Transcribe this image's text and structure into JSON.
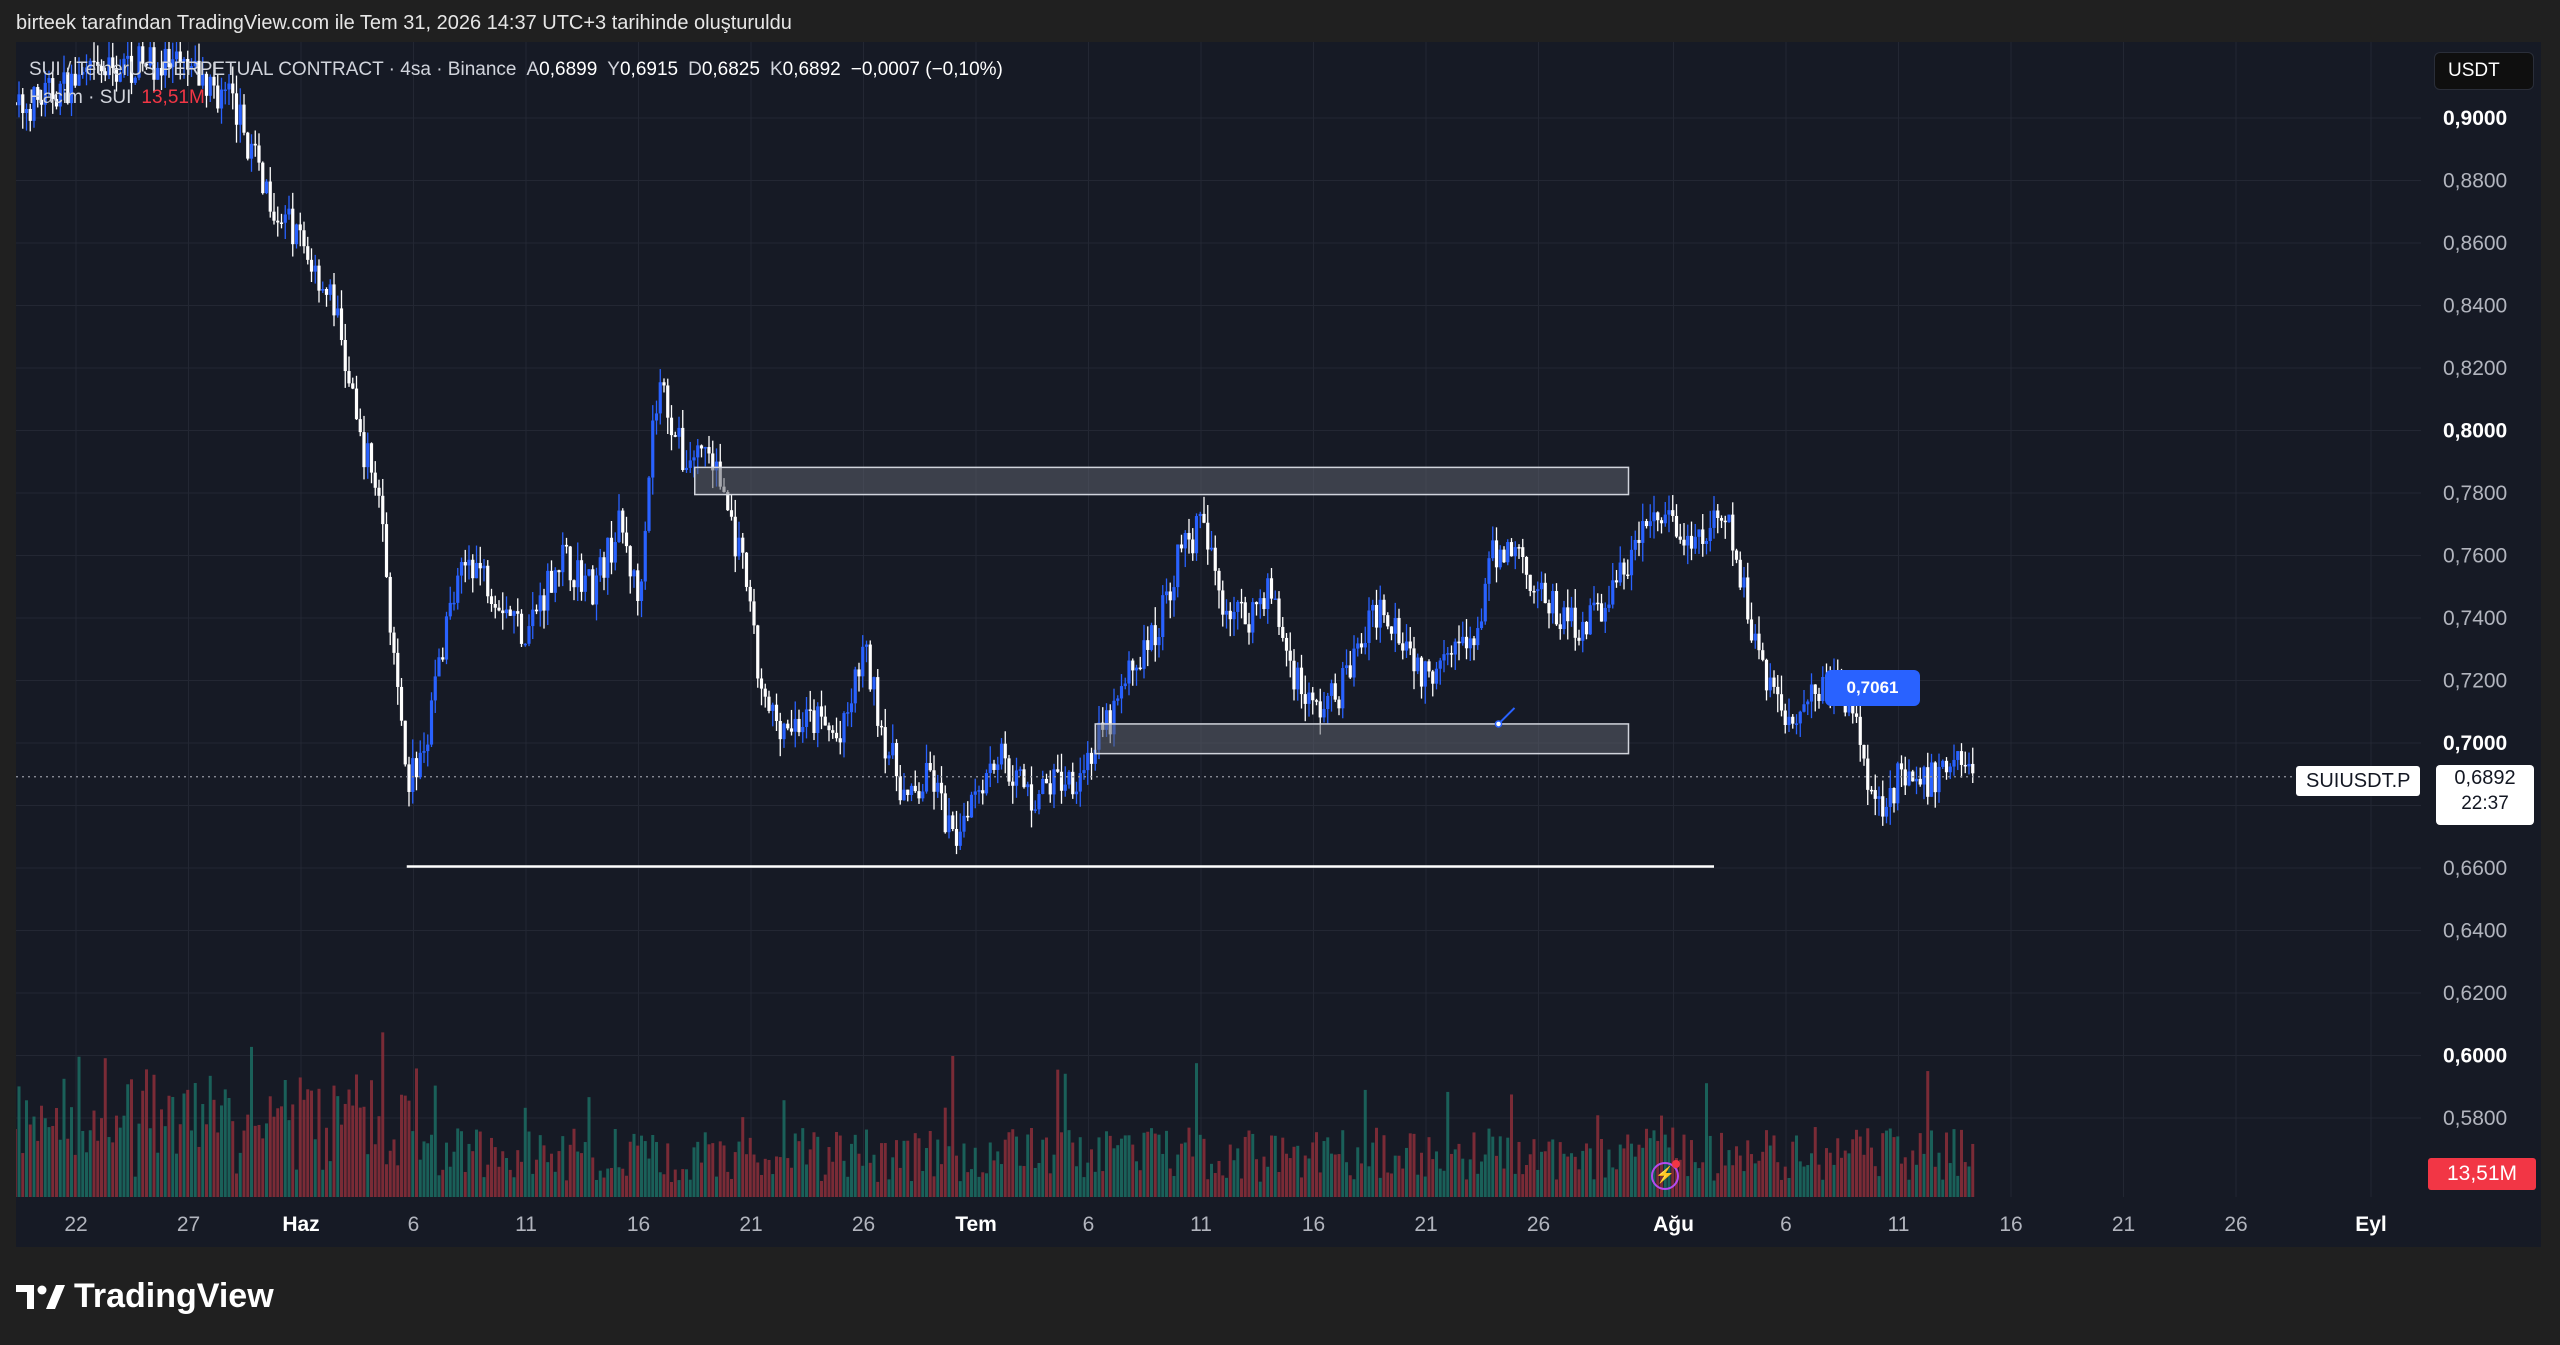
{
  "header": {
    "attribution": "birteek tarafından TradingView.com ile Tem 31, 2026 14:37 UTC+3 tarihinde oluşturuldu"
  },
  "legend": {
    "symbol": "SUI / TetherUS PERPETUAL CONTRACT · 4sa · Binance",
    "open_label": "A",
    "open": "0,6899",
    "high_label": "Y",
    "high": "0,6915",
    "low_label": "D",
    "low": "0,6825",
    "close_label": "K",
    "close": "0,6892",
    "change": "−0,0007 (−0,10%)",
    "volume_label": "Hacim · SUI",
    "volume": "13,51M"
  },
  "currency": "USDT",
  "price_tag": {
    "symbol": "SUIUSDT.P",
    "price": "0,6892",
    "countdown": "22:37"
  },
  "volume_tag": "13,51M",
  "callout": "0,7061",
  "brand": "TradingView",
  "colors": {
    "background": "#161a25",
    "up": "#2962ff",
    "down": "#ffffff",
    "vol_up": "#1b6d63",
    "vol_down": "#8c2f39",
    "zone_fill": "#5d606b",
    "grid": "#232733"
  },
  "chart_data": {
    "type": "candlestick",
    "interval": "4h",
    "y_axis": {
      "range": [
        0.571,
        0.914
      ],
      "ticks": [
        "0,9000",
        "0,8800",
        "0,8600",
        "0,8400",
        "0,8200",
        "0,8000",
        "0,7800",
        "0,7600",
        "0,7400",
        "0,7200",
        "0,7000",
        "0,6800",
        "0,6600",
        "0,6400",
        "0,6200",
        "0,6000",
        "0,5800"
      ],
      "bold_ticks": [
        "0,9000",
        "0,8000",
        "0,7000",
        "0,6000"
      ]
    },
    "x_axis": {
      "ticks": [
        {
          "label": "22",
          "day": -10,
          "bold": false
        },
        {
          "label": "27",
          "day": -5,
          "bold": false
        },
        {
          "label": "Haz",
          "day": 0,
          "bold": true
        },
        {
          "label": "6",
          "day": 5,
          "bold": false
        },
        {
          "label": "11",
          "day": 10,
          "bold": false
        },
        {
          "label": "16",
          "day": 15,
          "bold": false
        },
        {
          "label": "21",
          "day": 20,
          "bold": false
        },
        {
          "label": "26",
          "day": 25,
          "bold": false
        },
        {
          "label": "Tem",
          "day": 30,
          "bold": true
        },
        {
          "label": "6",
          "day": 35,
          "bold": false
        },
        {
          "label": "11",
          "day": 40,
          "bold": false
        },
        {
          "label": "16",
          "day": 45,
          "bold": false
        },
        {
          "label": "21",
          "day": 50,
          "bold": false
        },
        {
          "label": "26",
          "day": 55,
          "bold": false
        },
        {
          "label": "Ağu",
          "day": 61,
          "bold": true
        },
        {
          "label": "6",
          "day": 66,
          "bold": false
        },
        {
          "label": "11",
          "day": 71,
          "bold": false
        },
        {
          "label": "16",
          "day": 76,
          "bold": false
        },
        {
          "label": "21",
          "day": 81,
          "bold": false
        },
        {
          "label": "26",
          "day": 86,
          "bold": false
        },
        {
          "label": "Eyl",
          "day": 92,
          "bold": true
        }
      ]
    },
    "price_path": [
      {
        "day": -13.2,
        "price": 0.9
      },
      {
        "day": -10,
        "price": 0.912
      },
      {
        "day": -7,
        "price": 0.918
      },
      {
        "day": -5,
        "price": 0.915
      },
      {
        "day": -3,
        "price": 0.905
      },
      {
        "day": -2,
        "price": 0.885
      },
      {
        "day": -1,
        "price": 0.87
      },
      {
        "day": 0,
        "price": 0.86
      },
      {
        "day": 1.5,
        "price": 0.84
      },
      {
        "day": 2.5,
        "price": 0.8
      },
      {
        "day": 3.5,
        "price": 0.78
      },
      {
        "day": 4.2,
        "price": 0.72
      },
      {
        "day": 4.7,
        "price": 0.685
      },
      {
        "day": 5.5,
        "price": 0.7
      },
      {
        "day": 6.5,
        "price": 0.74
      },
      {
        "day": 7.5,
        "price": 0.76
      },
      {
        "day": 9,
        "price": 0.745
      },
      {
        "day": 10,
        "price": 0.735
      },
      {
        "day": 11.5,
        "price": 0.76
      },
      {
        "day": 13,
        "price": 0.75
      },
      {
        "day": 14.2,
        "price": 0.77
      },
      {
        "day": 15,
        "price": 0.745
      },
      {
        "day": 15.6,
        "price": 0.8
      },
      {
        "day": 16,
        "price": 0.815
      },
      {
        "day": 17,
        "price": 0.79
      },
      {
        "day": 18,
        "price": 0.795
      },
      {
        "day": 18.8,
        "price": 0.78
      },
      {
        "day": 19.8,
        "price": 0.75
      },
      {
        "day": 20.5,
        "price": 0.712
      },
      {
        "day": 21.5,
        "price": 0.706
      },
      {
        "day": 23,
        "price": 0.707
      },
      {
        "day": 24,
        "price": 0.7
      },
      {
        "day": 25,
        "price": 0.73
      },
      {
        "day": 26,
        "price": 0.7
      },
      {
        "day": 27,
        "price": 0.68
      },
      {
        "day": 28,
        "price": 0.69
      },
      {
        "day": 29,
        "price": 0.668
      },
      {
        "day": 29.7,
        "price": 0.683
      },
      {
        "day": 31,
        "price": 0.697
      },
      {
        "day": 32.5,
        "price": 0.682
      },
      {
        "day": 33.5,
        "price": 0.688
      },
      {
        "day": 34.5,
        "price": 0.69
      },
      {
        "day": 36,
        "price": 0.707
      },
      {
        "day": 37,
        "price": 0.725
      },
      {
        "day": 38,
        "price": 0.735
      },
      {
        "day": 39,
        "price": 0.76
      },
      {
        "day": 40,
        "price": 0.77
      },
      {
        "day": 41,
        "price": 0.745
      },
      {
        "day": 42,
        "price": 0.74
      },
      {
        "day": 43,
        "price": 0.75
      },
      {
        "day": 44,
        "price": 0.725
      },
      {
        "day": 45,
        "price": 0.71
      },
      {
        "day": 46,
        "price": 0.715
      },
      {
        "day": 47,
        "price": 0.73
      },
      {
        "day": 48,
        "price": 0.745
      },
      {
        "day": 49,
        "price": 0.735
      },
      {
        "day": 50,
        "price": 0.72
      },
      {
        "day": 51,
        "price": 0.735
      },
      {
        "day": 52,
        "price": 0.728
      },
      {
        "day": 53,
        "price": 0.76
      },
      {
        "day": 54,
        "price": 0.763
      },
      {
        "day": 55,
        "price": 0.748
      },
      {
        "day": 56,
        "price": 0.74
      },
      {
        "day": 57,
        "price": 0.738
      },
      {
        "day": 58,
        "price": 0.745
      },
      {
        "day": 59,
        "price": 0.758
      },
      {
        "day": 60,
        "price": 0.772
      },
      {
        "day": 61,
        "price": 0.77
      },
      {
        "day": 61.8,
        "price": 0.76
      },
      {
        "day": 62.6,
        "price": 0.768
      },
      {
        "day": 63.4,
        "price": 0.77
      },
      {
        "day": 64.2,
        "price": 0.745
      },
      {
        "day": 65,
        "price": 0.725
      },
      {
        "day": 66,
        "price": 0.708
      },
      {
        "day": 67,
        "price": 0.715
      },
      {
        "day": 68,
        "price": 0.72
      },
      {
        "day": 69,
        "price": 0.71
      },
      {
        "day": 70,
        "price": 0.68
      },
      {
        "day": 71,
        "price": 0.688
      },
      {
        "day": 71.8,
        "price": 0.685
      },
      {
        "day": 72.8,
        "price": 0.69
      },
      {
        "day": 73.6,
        "price": 0.697
      },
      {
        "day": 74.4,
        "price": 0.6892
      }
    ],
    "zones": [
      {
        "day_from": 17.5,
        "day_to": 59.0,
        "price_from": 0.7795,
        "price_to": 0.7882
      },
      {
        "day_from": 35.3,
        "day_to": 59.0,
        "price_from": 0.6966,
        "price_to": 0.7061
      }
    ],
    "support_line": {
      "day_from": 4.7,
      "day_to": 62.8,
      "price": 0.6605
    },
    "last_price": 0.6892,
    "callout_price": 0.7061
  }
}
